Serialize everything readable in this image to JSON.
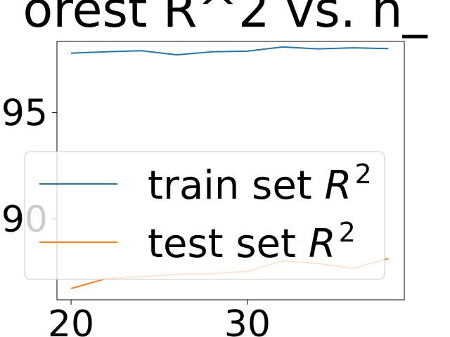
{
  "chart_data": {
    "type": "line",
    "title": "orest R^2 vs. n_",
    "xlabel": "",
    "ylabel": "",
    "x": [
      20,
      22,
      24,
      26,
      28,
      30,
      32,
      34,
      36,
      38
    ],
    "series": [
      {
        "name": "train set",
        "name_suffix": "R",
        "name_sup": "2",
        "color": "#1f77b4",
        "values": [
          0.978,
          0.9786,
          0.9791,
          0.9772,
          0.9786,
          0.9789,
          0.9809,
          0.98,
          0.9805,
          0.9801
        ]
      },
      {
        "name": "test set",
        "name_suffix": "R",
        "name_sup": "2",
        "color": "#ff7f0e",
        "values": [
          0.8673,
          0.872,
          0.8728,
          0.874,
          0.8742,
          0.8754,
          0.8803,
          0.8791,
          0.8768,
          0.8814
        ]
      }
    ],
    "xticks": [
      20,
      30
    ],
    "xtick_labels": [
      "20",
      "30"
    ],
    "yticks": [
      0.9,
      0.95
    ],
    "ytick_labels": [
      "90",
      "95"
    ],
    "xlim": [
      19.2,
      38.9
    ],
    "ylim": [
      0.862,
      0.9835
    ],
    "grid": false,
    "legend_position": "center"
  }
}
